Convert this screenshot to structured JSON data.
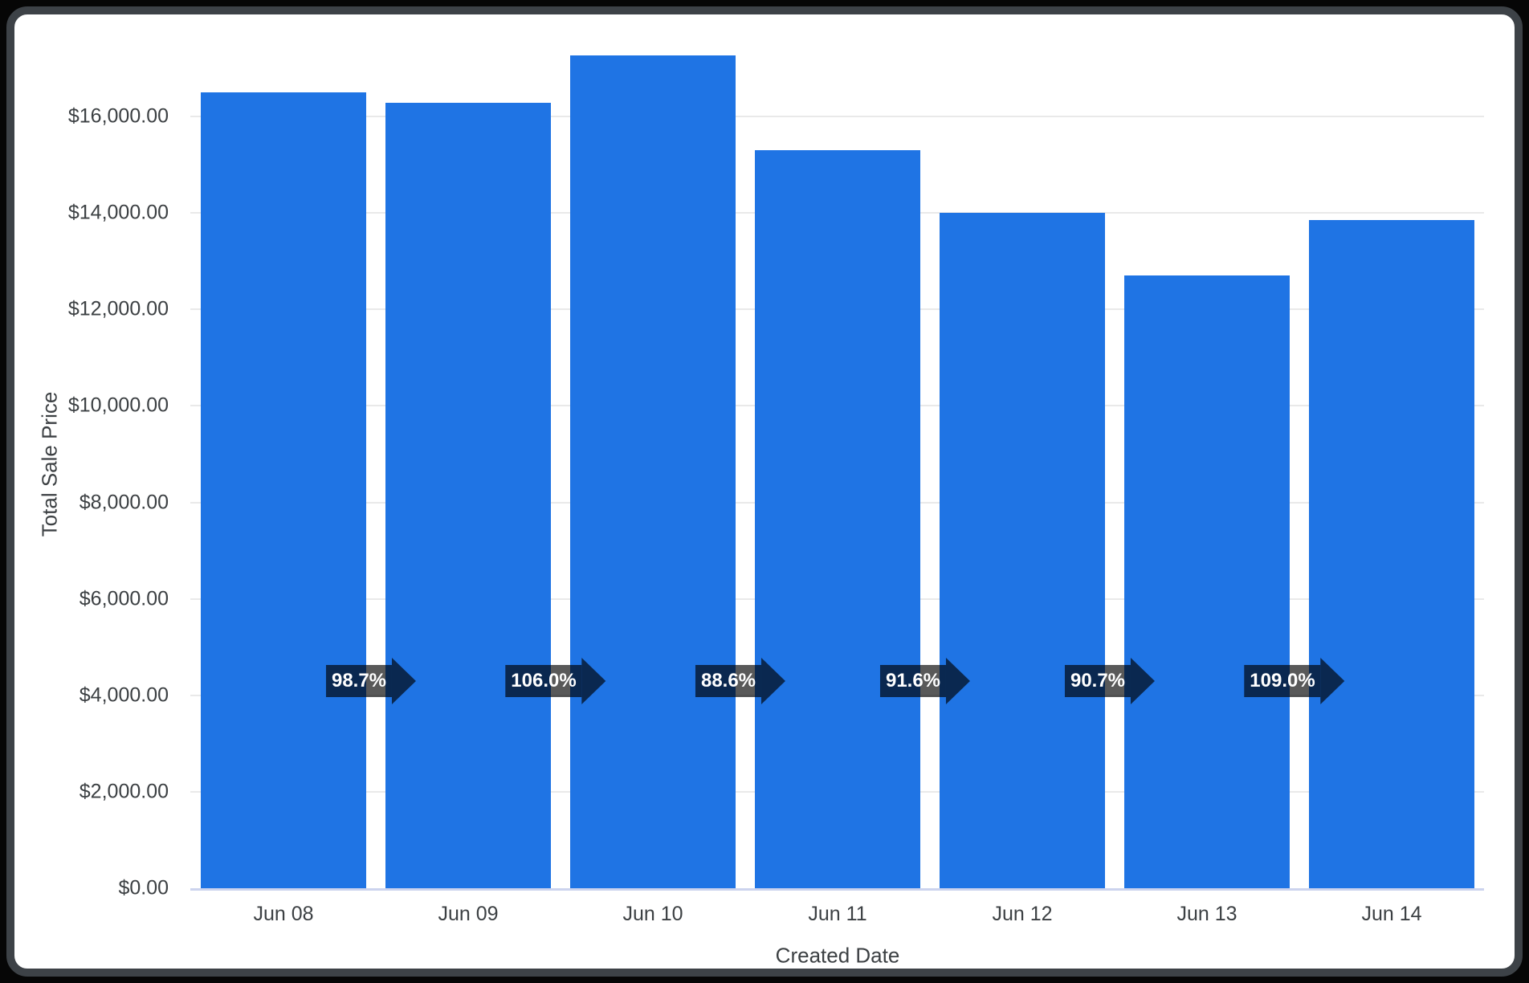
{
  "chart_data": {
    "type": "bar",
    "title": "",
    "xlabel": "Created Date",
    "ylabel": "Total Sale Price",
    "categories": [
      "Jun 08",
      "Jun 09",
      "Jun 10",
      "Jun 11",
      "Jun 12",
      "Jun 13",
      "Jun 14"
    ],
    "series": [
      {
        "name": "Total Sale Price",
        "values": [
          16500,
          16285,
          17260,
          15295,
          14010,
          12705,
          13850
        ]
      }
    ],
    "pct_change_labels": [
      "98.7%",
      "106.0%",
      "88.6%",
      "91.6%",
      "90.7%",
      "109.0%"
    ],
    "y_ticks": [
      {
        "value": 0,
        "label": "$0.00"
      },
      {
        "value": 2000,
        "label": "$2,000.00"
      },
      {
        "value": 4000,
        "label": "$4,000.00"
      },
      {
        "value": 6000,
        "label": "$6,000.00"
      },
      {
        "value": 8000,
        "label": "$8,000.00"
      },
      {
        "value": 10000,
        "label": "$10,000.00"
      },
      {
        "value": 12000,
        "label": "$12,000.00"
      },
      {
        "value": 14000,
        "label": "$14,000.00"
      },
      {
        "value": 16000,
        "label": "$16,000.00"
      }
    ],
    "ylim": [
      0,
      17400
    ],
    "grid": "horizontal",
    "legend": "none",
    "bar_color": "#1f74e4",
    "annotation_bg": "rgba(0,0,0,0.65)",
    "annotation_text_color": "#ffffff",
    "axis_text_color": "#3c4043",
    "gridline_color": "#e9e9e9",
    "baseline_color": "#ccd3ee"
  }
}
